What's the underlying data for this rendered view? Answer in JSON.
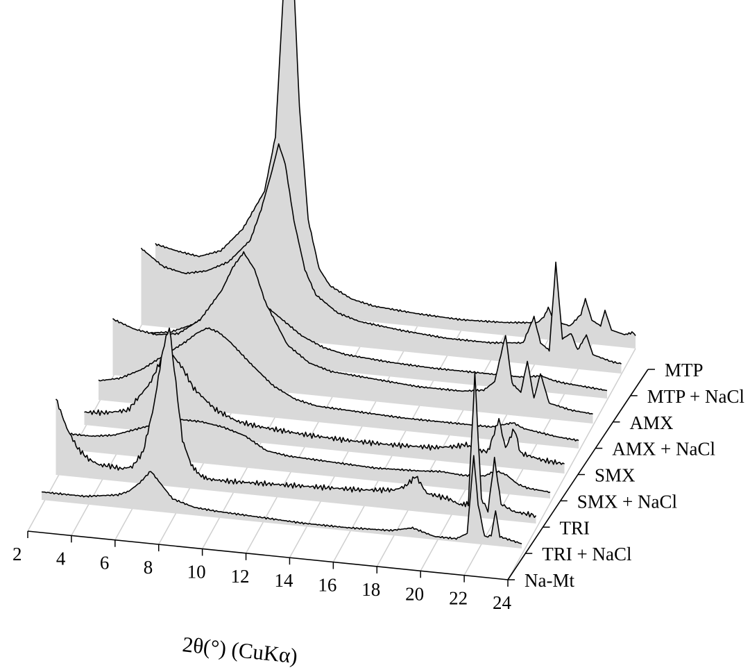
{
  "chart_data": {
    "type": "line",
    "style": "3D waterfall (stacked offset XRD patterns)",
    "xlabel": "2θ(°) (CuKα)",
    "xlim": [
      2,
      24
    ],
    "xticks": [
      2,
      4,
      6,
      8,
      10,
      12,
      14,
      16,
      18,
      20,
      22,
      24
    ],
    "legend": "series labels at right end of each depth row",
    "colors": {
      "fill": "#d9d9d9",
      "line": "#000000",
      "grid": "#cfcfcf"
    },
    "series": [
      {
        "name": "Na-Mt",
        "points": [
          [
            2,
            0.05
          ],
          [
            3.5,
            0.05
          ],
          [
            4,
            0.05
          ],
          [
            5.5,
            0.08
          ],
          [
            6,
            0.11
          ],
          [
            6.5,
            0.17
          ],
          [
            7,
            0.25
          ],
          [
            7.5,
            0.17
          ],
          [
            8,
            0.09
          ],
          [
            9,
            0.05
          ],
          [
            10,
            0.04
          ],
          [
            12,
            0.03
          ],
          [
            14,
            0.02
          ],
          [
            16,
            0.02
          ],
          [
            18,
            0.03
          ],
          [
            19,
            0.06
          ],
          [
            20,
            0.02
          ],
          [
            21,
            0.02
          ],
          [
            21.5,
            0.06
          ],
          [
            21.8,
            0.55
          ],
          [
            22,
            0.25
          ],
          [
            22.3,
            0.05
          ],
          [
            22.6,
            0.06
          ],
          [
            22.8,
            0.22
          ],
          [
            23,
            0.06
          ],
          [
            24,
            0.03
          ]
        ]
      },
      {
        "name": "TRI + NaCl",
        "points": [
          [
            2,
            0.48
          ],
          [
            2.5,
            0.3
          ],
          [
            3,
            0.18
          ],
          [
            3.5,
            0.12
          ],
          [
            4,
            0.09
          ],
          [
            4.5,
            0.09
          ],
          [
            5,
            0.08
          ],
          [
            5.5,
            0.1
          ],
          [
            6,
            0.2
          ],
          [
            6.5,
            0.5
          ],
          [
            6.9,
            0.85
          ],
          [
            7.2,
            1.0
          ],
          [
            7.5,
            0.65
          ],
          [
            7.8,
            0.3
          ],
          [
            8.2,
            0.15
          ],
          [
            8.6,
            0.09
          ],
          [
            9,
            0.07
          ],
          [
            10,
            0.07
          ],
          [
            12,
            0.08
          ],
          [
            14,
            0.09
          ],
          [
            16,
            0.1
          ],
          [
            17.5,
            0.12
          ],
          [
            18,
            0.15
          ],
          [
            18.5,
            0.22
          ],
          [
            19,
            0.12
          ],
          [
            20,
            0.1
          ],
          [
            20.5,
            0.07
          ],
          [
            20.9,
            0.08
          ],
          [
            21.2,
            0.9
          ],
          [
            21.5,
            0.12
          ],
          [
            21.8,
            0.05
          ],
          [
            22.1,
            0.38
          ],
          [
            22.4,
            0.1
          ],
          [
            23,
            0.06
          ],
          [
            24,
            0.05
          ]
        ]
      },
      {
        "name": "TRI",
        "points": [
          [
            2,
            0.1
          ],
          [
            3,
            0.1
          ],
          [
            4,
            0.12
          ],
          [
            5,
            0.17
          ],
          [
            6,
            0.22
          ],
          [
            7,
            0.26
          ],
          [
            8,
            0.26
          ],
          [
            9,
            0.24
          ],
          [
            10,
            0.2
          ],
          [
            10.5,
            0.16
          ],
          [
            11,
            0.12
          ],
          [
            12,
            0.1
          ],
          [
            14,
            0.09
          ],
          [
            16,
            0.08
          ],
          [
            18,
            0.09
          ],
          [
            19,
            0.1
          ],
          [
            20,
            0.09
          ],
          [
            21,
            0.1
          ],
          [
            21.5,
            0.14
          ],
          [
            22,
            0.12
          ],
          [
            22.5,
            0.07
          ],
          [
            23,
            0.05
          ],
          [
            24,
            0.04
          ]
        ]
      },
      {
        "name": "SMX + NaCl",
        "points": [
          [
            2,
            0.08
          ],
          [
            3,
            0.09
          ],
          [
            4,
            0.12
          ],
          [
            5,
            0.3
          ],
          [
            5.5,
            0.45
          ],
          [
            6,
            0.5
          ],
          [
            6.5,
            0.42
          ],
          [
            7,
            0.3
          ],
          [
            8,
            0.18
          ],
          [
            9,
            0.12
          ],
          [
            10,
            0.1
          ],
          [
            12,
            0.08
          ],
          [
            14,
            0.07
          ],
          [
            16,
            0.07
          ],
          [
            18,
            0.08
          ],
          [
            19,
            0.1
          ],
          [
            19.5,
            0.12
          ],
          [
            20,
            0.09
          ],
          [
            20.5,
            0.09
          ],
          [
            21,
            0.3
          ],
          [
            21.3,
            0.12
          ],
          [
            21.7,
            0.25
          ],
          [
            22,
            0.1
          ],
          [
            23,
            0.07
          ],
          [
            24,
            0.06
          ]
        ]
      },
      {
        "name": "SMX",
        "points": [
          [
            2,
            0.12
          ],
          [
            3,
            0.15
          ],
          [
            4,
            0.22
          ],
          [
            5,
            0.32
          ],
          [
            6,
            0.42
          ],
          [
            6.5,
            0.48
          ],
          [
            7,
            0.52
          ],
          [
            7.5,
            0.5
          ],
          [
            8,
            0.45
          ],
          [
            9,
            0.32
          ],
          [
            10,
            0.2
          ],
          [
            11,
            0.13
          ],
          [
            12,
            0.1
          ],
          [
            14,
            0.09
          ],
          [
            16,
            0.08
          ],
          [
            18,
            0.08
          ],
          [
            20,
            0.08
          ],
          [
            20.5,
            0.1
          ],
          [
            21,
            0.12
          ],
          [
            21.5,
            0.09
          ],
          [
            22,
            0.08
          ],
          [
            23,
            0.06
          ],
          [
            24,
            0.05
          ]
        ]
      },
      {
        "name": "AMX + NaCl",
        "points": [
          [
            2,
            0.35
          ],
          [
            3,
            0.3
          ],
          [
            4,
            0.28
          ],
          [
            5,
            0.3
          ],
          [
            6,
            0.4
          ],
          [
            7,
            0.6
          ],
          [
            7.5,
            0.75
          ],
          [
            8,
            0.85
          ],
          [
            8.5,
            0.75
          ],
          [
            9,
            0.55
          ],
          [
            10,
            0.3
          ],
          [
            11,
            0.2
          ],
          [
            12,
            0.16
          ],
          [
            14,
            0.14
          ],
          [
            16,
            0.12
          ],
          [
            18,
            0.12
          ],
          [
            19,
            0.14
          ],
          [
            19.5,
            0.2
          ],
          [
            20,
            0.5
          ],
          [
            20.3,
            0.2
          ],
          [
            20.7,
            0.15
          ],
          [
            21,
            0.35
          ],
          [
            21.3,
            0.12
          ],
          [
            21.6,
            0.28
          ],
          [
            22,
            0.1
          ],
          [
            23,
            0.07
          ],
          [
            24,
            0.06
          ]
        ]
      },
      {
        "name": "AMX",
        "points": [
          [
            2,
            0.12
          ],
          [
            3,
            0.12
          ],
          [
            4,
            0.14
          ],
          [
            5,
            0.2
          ],
          [
            6,
            0.3
          ],
          [
            7,
            0.4
          ],
          [
            7.5,
            0.43
          ],
          [
            8,
            0.4
          ],
          [
            9,
            0.3
          ],
          [
            10,
            0.2
          ],
          [
            11,
            0.14
          ],
          [
            12,
            0.11
          ],
          [
            14,
            0.09
          ],
          [
            16,
            0.08
          ],
          [
            18,
            0.08
          ],
          [
            20,
            0.08
          ],
          [
            21,
            0.1
          ],
          [
            21.5,
            0.08
          ],
          [
            22,
            0.07
          ],
          [
            23,
            0.06
          ],
          [
            24,
            0.05
          ]
        ]
      },
      {
        "name": "MTP + NaCl",
        "points": [
          [
            2,
            0.48
          ],
          [
            3,
            0.38
          ],
          [
            4,
            0.35
          ],
          [
            5,
            0.38
          ],
          [
            6,
            0.45
          ],
          [
            7,
            0.6
          ],
          [
            7.5,
            0.8
          ],
          [
            8,
            1.05
          ],
          [
            8.3,
            1.22
          ],
          [
            8.6,
            1.1
          ],
          [
            9,
            0.75
          ],
          [
            9.5,
            0.45
          ],
          [
            10,
            0.3
          ],
          [
            11,
            0.2
          ],
          [
            12,
            0.16
          ],
          [
            14,
            0.13
          ],
          [
            16,
            0.11
          ],
          [
            18,
            0.11
          ],
          [
            19.5,
            0.13
          ],
          [
            20,
            0.3
          ],
          [
            20.3,
            0.14
          ],
          [
            20.7,
            0.1
          ],
          [
            21,
            0.65
          ],
          [
            21.3,
            0.18
          ],
          [
            21.7,
            0.22
          ],
          [
            22,
            0.12
          ],
          [
            22.4,
            0.22
          ],
          [
            22.7,
            0.1
          ],
          [
            23.5,
            0.07
          ],
          [
            24,
            0.06
          ]
        ]
      },
      {
        "name": "MTP",
        "points": [
          [
            2,
            0.35
          ],
          [
            3,
            0.32
          ],
          [
            4,
            0.3
          ],
          [
            5,
            0.35
          ],
          [
            6,
            0.5
          ],
          [
            7,
            0.75
          ],
          [
            7.5,
            1.1
          ],
          [
            7.9,
            2.1
          ],
          [
            8.1,
            2.7
          ],
          [
            8.3,
            2.2
          ],
          [
            8.6,
            1.3
          ],
          [
            9,
            0.6
          ],
          [
            9.5,
            0.3
          ],
          [
            10,
            0.2
          ],
          [
            11,
            0.13
          ],
          [
            12,
            0.1
          ],
          [
            14,
            0.08
          ],
          [
            16,
            0.07
          ],
          [
            18,
            0.08
          ],
          [
            19.5,
            0.1
          ],
          [
            19.8,
            0.14
          ],
          [
            20,
            0.2
          ],
          [
            20.3,
            0.12
          ],
          [
            21,
            0.1
          ],
          [
            21.5,
            0.18
          ],
          [
            21.7,
            0.28
          ],
          [
            22,
            0.15
          ],
          [
            22.4,
            0.12
          ],
          [
            22.6,
            0.22
          ],
          [
            22.9,
            0.1
          ],
          [
            23.5,
            0.08
          ],
          [
            23.9,
            0.1
          ],
          [
            24,
            0.08
          ]
        ]
      }
    ]
  }
}
